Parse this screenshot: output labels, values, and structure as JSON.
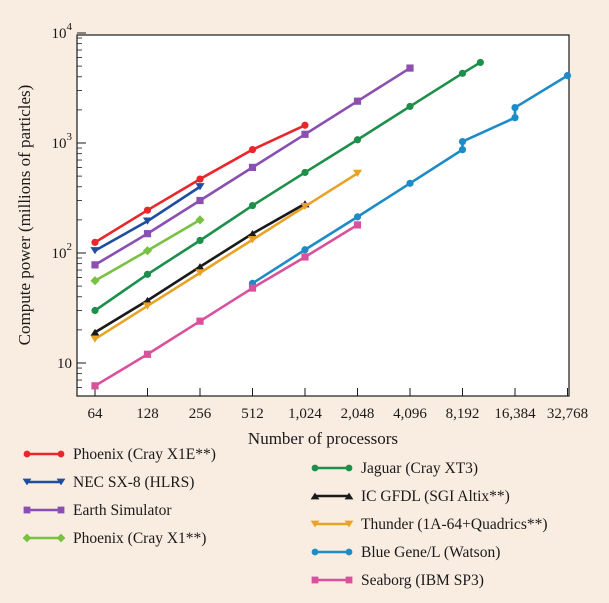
{
  "chart_data": {
    "type": "line",
    "title": "",
    "xlabel": "Number of processors",
    "ylabel": "Compute power  (millions of particles)",
    "x_scale": "log2",
    "y_scale": "log10",
    "xlim": [
      64,
      32768
    ],
    "ylim": [
      5,
      10000
    ],
    "x_ticks": [
      64,
      128,
      256,
      512,
      1024,
      2048,
      4096,
      8192,
      16384,
      32768
    ],
    "x_tick_labels": [
      "64",
      "128",
      "256",
      "512",
      "1,024",
      "2,048",
      "4,096",
      "8,192",
      "16,384",
      "32,768"
    ],
    "y_ticks": [
      10,
      100,
      1000,
      10000
    ],
    "y_tick_labels": [
      {
        "base": "10",
        "exp": ""
      },
      {
        "base": "10",
        "exp": "2"
      },
      {
        "base": "10",
        "exp": "3"
      },
      {
        "base": "10",
        "exp": "4"
      }
    ],
    "grid": false,
    "legend_position": "bottom",
    "series": [
      {
        "name": "Phoenix (Cray X1E**)",
        "color": "#e8262b",
        "marker": "circle",
        "x": [
          64,
          128,
          256,
          512,
          1024
        ],
        "y": [
          125,
          245,
          470,
          870,
          1450
        ]
      },
      {
        "name": "NEC SX-8 (HLRS)",
        "color": "#1f4ea1",
        "marker": "triangle-down",
        "x": [
          64,
          128,
          256
        ],
        "y": [
          105,
          195,
          400
        ]
      },
      {
        "name": "Earth Simulator",
        "color": "#8a4fb0",
        "marker": "square",
        "x": [
          64,
          128,
          256,
          512,
          1024,
          2048,
          4096
        ],
        "y": [
          78,
          150,
          300,
          600,
          1200,
          2400,
          4800
        ]
      },
      {
        "name": "Phoenix (Cray X1**)",
        "color": "#79c143",
        "marker": "diamond",
        "x": [
          64,
          128,
          256
        ],
        "y": [
          56,
          105,
          200
        ]
      },
      {
        "name": "Jaguar (Cray XT3)",
        "color": "#1c8f4a",
        "marker": "circle",
        "x": [
          64,
          128,
          256,
          512,
          1024,
          2048,
          4096,
          8192,
          10368
        ],
        "y": [
          30,
          64,
          130,
          270,
          540,
          1070,
          2150,
          4300,
          5400
        ]
      },
      {
        "name": "IC GFDL (SGI Altix**)",
        "color": "#1a1a1a",
        "marker": "triangle-up",
        "x": [
          64,
          128,
          256,
          512,
          1024
        ],
        "y": [
          19,
          37,
          75,
          150,
          280
        ]
      },
      {
        "name": "Thunder (1A-64+Quadrics**)",
        "color": "#e8a325",
        "marker": "triangle-down",
        "x": [
          64,
          128,
          256,
          512,
          1024,
          2048
        ],
        "y": [
          16.5,
          33,
          66,
          132,
          265,
          530
        ]
      },
      {
        "name": "Blue Gene/L (Watson)",
        "color": "#1d8cc6",
        "marker": "circle",
        "x": [
          512,
          1024,
          2048,
          4096,
          8192,
          8192,
          16384,
          16384,
          32768
        ],
        "y": [
          53,
          107,
          213,
          430,
          870,
          1030,
          1700,
          2100,
          4100
        ]
      },
      {
        "name": "Seaborg (IBM SP3)",
        "color": "#d9519c",
        "marker": "square",
        "x": [
          64,
          128,
          256,
          512,
          1024,
          2048
        ],
        "y": [
          6.2,
          12,
          24,
          48,
          92,
          180
        ]
      }
    ]
  }
}
